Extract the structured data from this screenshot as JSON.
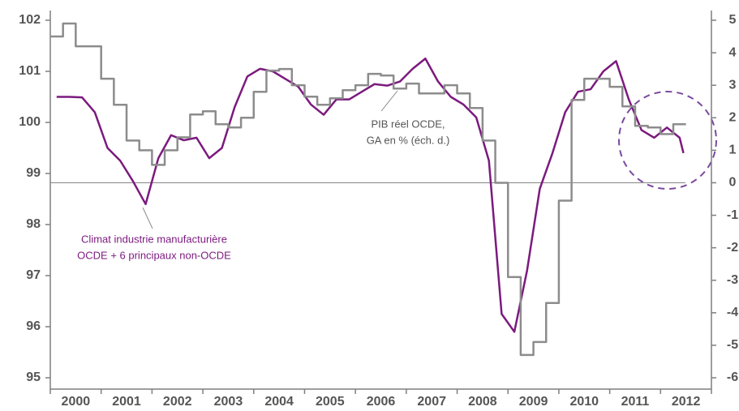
{
  "chart_data": {
    "type": "line",
    "categories": [
      "2000",
      "2001",
      "2002",
      "2003",
      "2004",
      "2005",
      "2006",
      "2007",
      "2008",
      "2009",
      "2010",
      "2011",
      "2012"
    ],
    "xlim": [
      2000,
      2013
    ],
    "ylim": [
      95,
      102
    ],
    "yticks": [
      95,
      96,
      97,
      98,
      99,
      100,
      101,
      102
    ],
    "y2lim": [
      -6,
      5
    ],
    "y2ticks": [
      -6,
      -5,
      -4,
      -3,
      -2,
      -1,
      0,
      1,
      2,
      3,
      4,
      5
    ],
    "annotations": [
      {
        "lines": [
          "PIB réel OCDE,",
          "GA en % (éch. d.)"
        ],
        "color": "#555555"
      },
      {
        "lines": [
          "Climat industrie manufacturière",
          "OCDE + 6 principaux non-OCDE"
        ],
        "color": "#7b1a7e"
      }
    ],
    "series": [
      {
        "name": "Climat industrie manufacturière OCDE + 6 principaux non-OCDE",
        "color": "#7b1a7e",
        "axis": "y",
        "style": "line",
        "x": [
          2000.125,
          2000.375,
          2000.625,
          2000.875,
          2001.125,
          2001.375,
          2001.625,
          2001.875,
          2002.125,
          2002.375,
          2002.625,
          2002.875,
          2003.125,
          2003.375,
          2003.625,
          2003.875,
          2004.125,
          2004.375,
          2004.625,
          2004.875,
          2005.125,
          2005.375,
          2005.625,
          2005.875,
          2006.125,
          2006.375,
          2006.625,
          2006.875,
          2007.125,
          2007.375,
          2007.625,
          2007.875,
          2008.125,
          2008.375,
          2008.625,
          2008.875,
          2009.125,
          2009.375,
          2009.625,
          2009.875,
          2010.125,
          2010.375,
          2010.625,
          2010.875,
          2011.125,
          2011.375,
          2011.625,
          2011.875,
          2012.125,
          2012.375,
          2012.45
        ],
        "values": [
          100.5,
          100.5,
          100.49,
          100.2,
          99.5,
          99.25,
          98.85,
          98.4,
          99.3,
          99.75,
          99.65,
          99.7,
          99.3,
          99.5,
          100.3,
          100.9,
          101.05,
          101.0,
          100.85,
          100.7,
          100.35,
          100.15,
          100.45,
          100.45,
          100.6,
          100.75,
          100.72,
          100.8,
          101.05,
          101.25,
          100.8,
          100.5,
          100.35,
          100.1,
          99.25,
          96.25,
          95.9,
          97.1,
          98.7,
          99.4,
          100.2,
          100.6,
          100.65,
          101.0,
          101.2,
          100.45,
          99.85,
          99.7,
          99.9,
          99.7,
          99.4
        ]
      },
      {
        "name": "PIB réel OCDE, GA en % (éch. d.)",
        "color": "#8c8c8c",
        "axis": "y2",
        "style": "step",
        "x": [
          2000.125,
          2000.375,
          2000.625,
          2000.875,
          2001.125,
          2001.375,
          2001.625,
          2001.875,
          2002.125,
          2002.375,
          2002.625,
          2002.875,
          2003.125,
          2003.375,
          2003.625,
          2003.875,
          2004.125,
          2004.375,
          2004.625,
          2004.875,
          2005.125,
          2005.375,
          2005.625,
          2005.875,
          2006.125,
          2006.375,
          2006.625,
          2006.875,
          2007.125,
          2007.375,
          2007.625,
          2007.875,
          2008.125,
          2008.375,
          2008.625,
          2008.875,
          2009.125,
          2009.375,
          2009.625,
          2009.875,
          2010.125,
          2010.375,
          2010.625,
          2010.875,
          2011.125,
          2011.375,
          2011.625,
          2011.875,
          2012.125,
          2012.375
        ],
        "values": [
          4.5,
          4.9,
          4.2,
          4.2,
          3.2,
          2.4,
          1.3,
          1.0,
          0.55,
          1.0,
          1.4,
          2.1,
          2.2,
          1.8,
          1.7,
          2.0,
          2.8,
          3.45,
          3.5,
          3.0,
          2.65,
          2.4,
          2.6,
          2.85,
          3.0,
          3.35,
          3.3,
          2.9,
          3.05,
          2.75,
          2.75,
          3.0,
          2.75,
          2.3,
          1.3,
          0.0,
          -2.9,
          -5.3,
          -4.9,
          -3.7,
          -0.55,
          2.55,
          3.2,
          3.2,
          2.95,
          2.35,
          1.75,
          1.7,
          1.5,
          1.8
        ]
      }
    ]
  }
}
